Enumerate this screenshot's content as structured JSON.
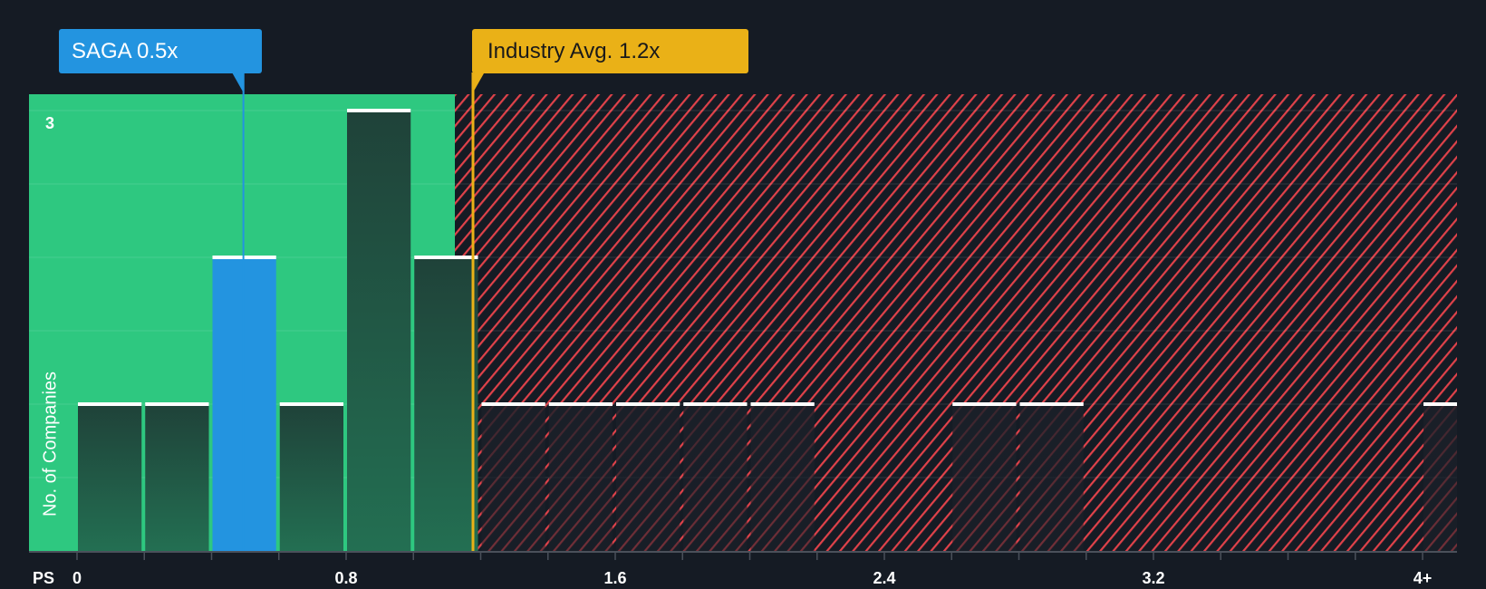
{
  "badges": {
    "company": {
      "label": "SAGA 0.5x",
      "value": 0.5,
      "color": "#2394e0"
    },
    "industry": {
      "label": "Industry Avg. 1.2x",
      "value": 1.2,
      "color": "#eab117"
    }
  },
  "axis": {
    "x_prefix": "PS",
    "x_ticks": [
      "0",
      "0.8",
      "1.6",
      "2.4",
      "3.2",
      "4+"
    ],
    "y_tick": "3",
    "y_label": "No. of Companies"
  },
  "colors": {
    "background": "#151b24",
    "undervalued_zone": "#2ec880",
    "overvalued_hatch": "#e0424a",
    "bar_dark": "#214a3f",
    "bar_highlight": "#2394e0"
  },
  "chart_data": {
    "type": "bar",
    "title": "",
    "xlabel": "PS",
    "ylabel": "No. of Companies",
    "x_ticks": [
      0,
      0.8,
      1.6,
      2.4,
      3.2,
      "4+"
    ],
    "bin_width": 0.2,
    "categories": [
      "0-0.2",
      "0.2-0.4",
      "0.4-0.6",
      "0.6-0.8",
      "0.8-1.0",
      "1.0-1.2",
      "1.2-1.4",
      "1.4-1.6",
      "1.6-1.8",
      "1.8-2.0",
      "2.0-2.2",
      "2.2-2.4",
      "2.4-2.6",
      "2.6-2.8",
      "2.8-3.0",
      "3.0-3.2",
      "3.2-3.4",
      "3.4-3.6",
      "3.6-3.8",
      "3.8-4.0",
      "4+"
    ],
    "values": [
      1,
      1,
      2,
      1,
      3,
      2,
      1,
      1,
      1,
      1,
      1,
      0,
      0,
      1,
      1,
      0,
      0,
      0,
      0,
      0,
      1
    ],
    "highlight_index": 2,
    "company": {
      "name": "SAGA",
      "value": 0.5
    },
    "industry_average": 1.2,
    "ylim": [
      0,
      3
    ]
  }
}
